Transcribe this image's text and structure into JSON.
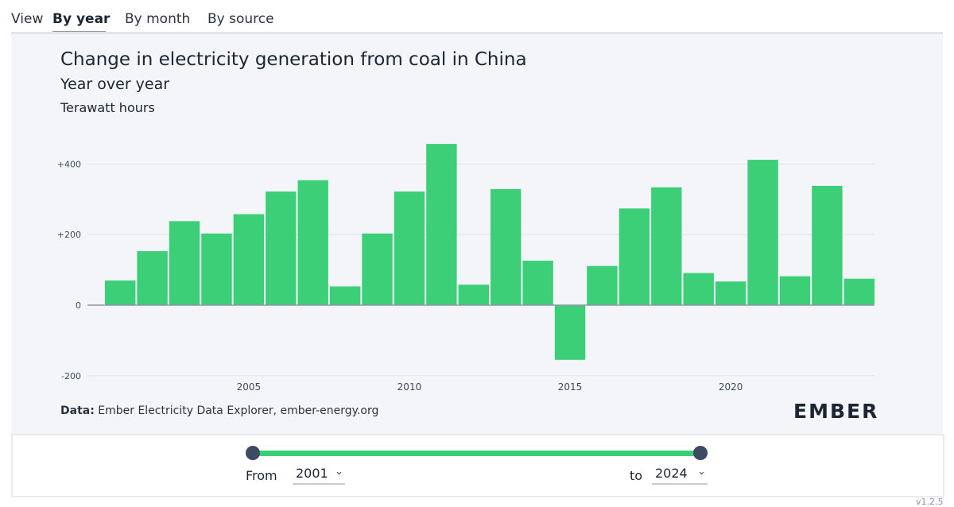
{
  "tabs": {
    "view_label": "View",
    "items": [
      "By year",
      "By month",
      "By source"
    ]
  },
  "chart_header": {
    "title": "Change in electricity generation from coal in China",
    "subtitle": "Year over year",
    "unit": "Terawatt hours"
  },
  "source": {
    "prefix": "Data:",
    "text": "Ember Electricity Data Explorer, ember-energy.org"
  },
  "logo": {
    "text": "EMBER"
  },
  "range": {
    "from_label": "From",
    "from_value": "2001",
    "to_label": "to",
    "to_value": "2024"
  },
  "version": "v1.2.5",
  "colors": {
    "bar": "#3ccf78",
    "grid": "#dde1e8",
    "axis": "#8c97a8"
  },
  "chart_data": {
    "type": "bar",
    "title": "Change in electricity generation from coal in China",
    "subtitle": "Year over year",
    "ylabel": "Terawatt hours",
    "x": [
      2001,
      2002,
      2003,
      2004,
      2005,
      2006,
      2007,
      2008,
      2009,
      2010,
      2011,
      2012,
      2013,
      2014,
      2015,
      2016,
      2017,
      2018,
      2019,
      2020,
      2021,
      2022,
      2023,
      2024
    ],
    "values": [
      70,
      153,
      238,
      203,
      258,
      322,
      354,
      53,
      203,
      322,
      457,
      58,
      329,
      126,
      -155,
      111,
      274,
      334,
      91,
      67,
      412,
      82,
      338,
      75
    ],
    "ylim": [
      -200,
      460
    ],
    "yticks": [
      -200,
      0,
      200,
      400
    ],
    "ytick_labels": [
      "-200",
      "0",
      "+200",
      "+400"
    ],
    "xticks": [
      2005,
      2010,
      2015,
      2020
    ],
    "xtick_labels": [
      "2005",
      "2010",
      "2015",
      "2020"
    ],
    "grid": true
  }
}
